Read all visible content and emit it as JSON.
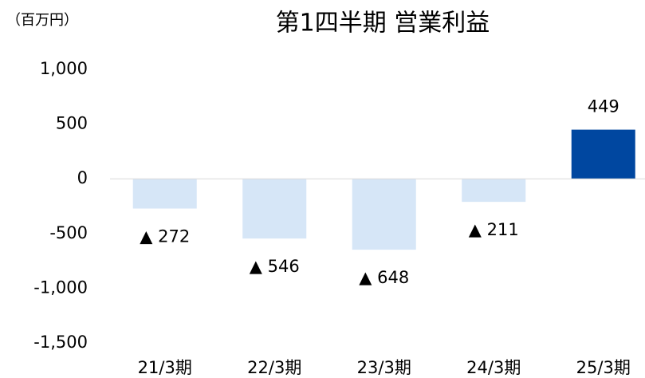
{
  "chart_data": {
    "type": "bar",
    "title": "第1四半期 営業利益",
    "y_unit": "（百万円）",
    "categories": [
      "21/3期",
      "22/3期",
      "23/3期",
      "24/3期",
      "25/3期"
    ],
    "values": [
      -272,
      -546,
      -648,
      -211,
      449
    ],
    "value_labels": [
      "▲ 272",
      "▲ 546",
      "▲ 648",
      "▲ 211",
      "449"
    ],
    "colors": [
      "#d6e6f7",
      "#d6e6f7",
      "#d6e6f7",
      "#d6e6f7",
      "#0047a0"
    ],
    "ylim": [
      -1500,
      1000
    ],
    "yticks": [
      {
        "value": 1000,
        "label": "1,000"
      },
      500,
      0,
      -500,
      {
        "value": -1000,
        "label": "-1,000"
      },
      {
        "value": -1500,
        "label": "-1,500"
      }
    ],
    "grid": false
  }
}
